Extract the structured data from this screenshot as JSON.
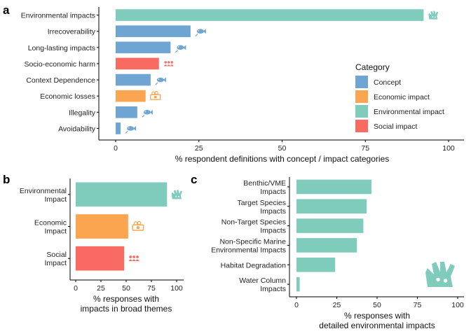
{
  "colors": {
    "Concept": "#6fa5d2",
    "Economic impact": "#fca551",
    "Environmental impact": "#7fccbc",
    "Social impact": "#f96a63"
  },
  "chart_data": [
    {
      "panel": "a",
      "type": "bar",
      "orientation": "horizontal",
      "categories": [
        "Environmental impacts",
        "Irrecoverability",
        "Long-lasting impacts",
        "Socio-economic harm",
        "Context Dependence",
        "Economic losses",
        "Illegality",
        "Avoidability"
      ],
      "values": [
        92.5,
        22.5,
        16.5,
        13,
        10.5,
        9,
        6.5,
        1.5
      ],
      "category_group": [
        "Environmental impact",
        "Concept",
        "Concept",
        "Social impact",
        "Concept",
        "Economic impact",
        "Concept",
        "Concept"
      ],
      "icons": [
        "coral-icon",
        "fish-icon",
        "fish-icon",
        "people-icon",
        "fish-icon",
        "money-icon",
        "fish-icon",
        "fish-icon"
      ],
      "xlabel": "% respondent definitions with concept / impact categories",
      "xlim": [
        0,
        100
      ],
      "xticks": [
        0,
        25,
        50,
        75,
        100
      ],
      "legend": {
        "title": "Category",
        "position": "right",
        "entries": [
          "Concept",
          "Economic impact",
          "Environmental impact",
          "Social impact"
        ]
      }
    },
    {
      "panel": "b",
      "type": "bar",
      "orientation": "horizontal",
      "categories": [
        "Environmental\nImpact",
        "Economic\nImpact",
        "Social\nImpact"
      ],
      "values": [
        90.5,
        52,
        48
      ],
      "category_group": [
        "Environmental impact",
        "Economic impact",
        "Social impact"
      ],
      "icons": [
        "coral-icon",
        "money-icon",
        "people-icon"
      ],
      "xlabel": "% responses with\nimpacts in broad themes",
      "xlim": [
        0,
        100
      ],
      "xticks": [
        0,
        25,
        50,
        75,
        100
      ]
    },
    {
      "panel": "c",
      "type": "bar",
      "orientation": "horizontal",
      "categories": [
        "Benthic/VME\nImpacts",
        "Target Species\nImpacts",
        "Non-Target Species\nImpacts",
        "Non-Specific Marine\nEnvironmental Impacts",
        "Habitat Degradation",
        "Water Column\nImpacts"
      ],
      "values": [
        46.5,
        43.5,
        41.5,
        37.5,
        24,
        2
      ],
      "category_group": [
        "Environmental impact",
        "Environmental impact",
        "Environmental impact",
        "Environmental impact",
        "Environmental impact",
        "Environmental impact"
      ],
      "xlabel": "% responses with\ndetailed environmental impacts",
      "xlim": [
        0,
        100
      ],
      "xticks": [
        0,
        25,
        50,
        75,
        100
      ]
    }
  ]
}
